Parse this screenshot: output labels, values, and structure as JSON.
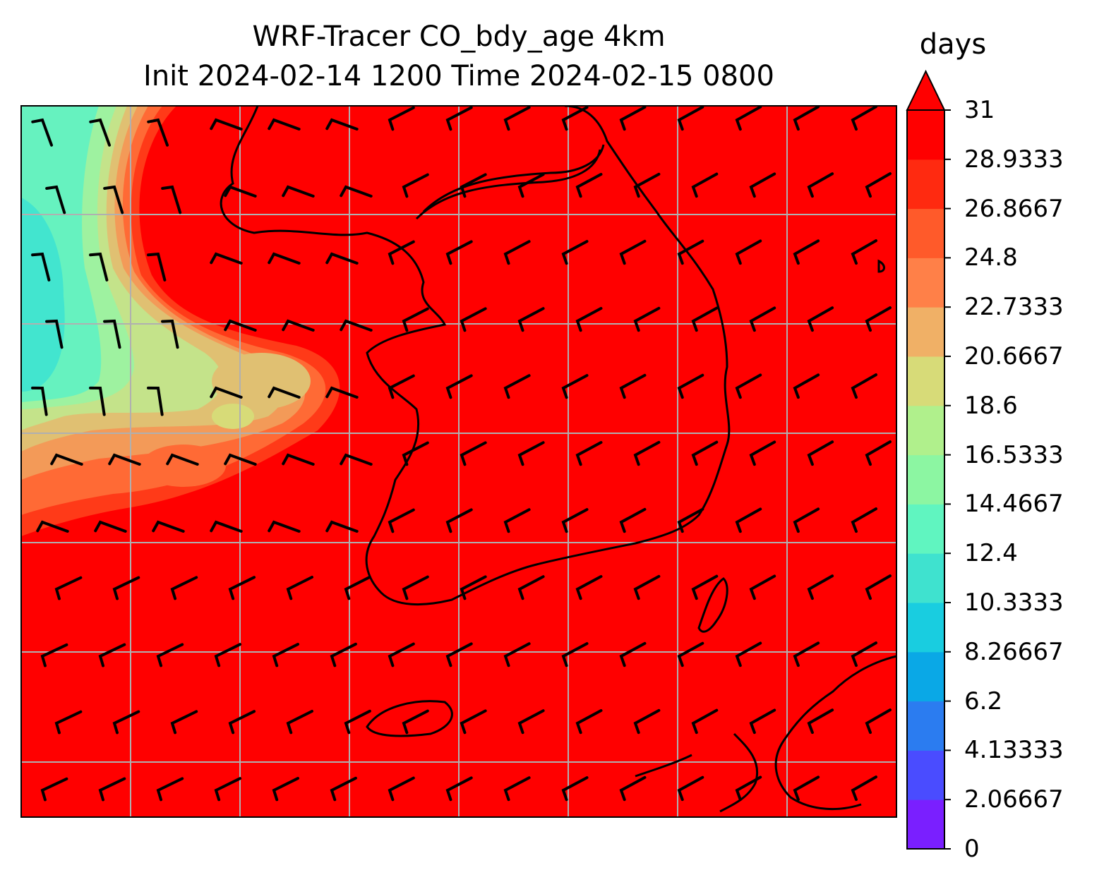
{
  "title_line1": "WRF-Tracer CO_bdy_age 4km",
  "title_line2": "Init 2024-02-14 1200 Time 2024-02-15 0800",
  "colorbar": {
    "unit": "days",
    "ticks": [
      "0",
      "2.06667",
      "4.13333",
      "6.2",
      "8.26667",
      "10.3333",
      "12.4",
      "14.4667",
      "16.5333",
      "18.6",
      "20.6667",
      "22.7333",
      "24.8",
      "26.8667",
      "28.9333",
      "31"
    ],
    "colors": [
      "#7a1fff",
      "#4a4cff",
      "#2b7cf0",
      "#0aa8e6",
      "#19cde0",
      "#3fe2cf",
      "#60f5c0",
      "#8cf6a2",
      "#b0f08c",
      "#d7db78",
      "#f0b066",
      "#ff8048",
      "#ff5a2a",
      "#ff2a10",
      "#ff0000"
    ],
    "extend": "max"
  },
  "map": {
    "field": "CO_bdy_age",
    "dominant_color": "#ff0000",
    "gridlines": true,
    "wind_barbs": true
  }
}
